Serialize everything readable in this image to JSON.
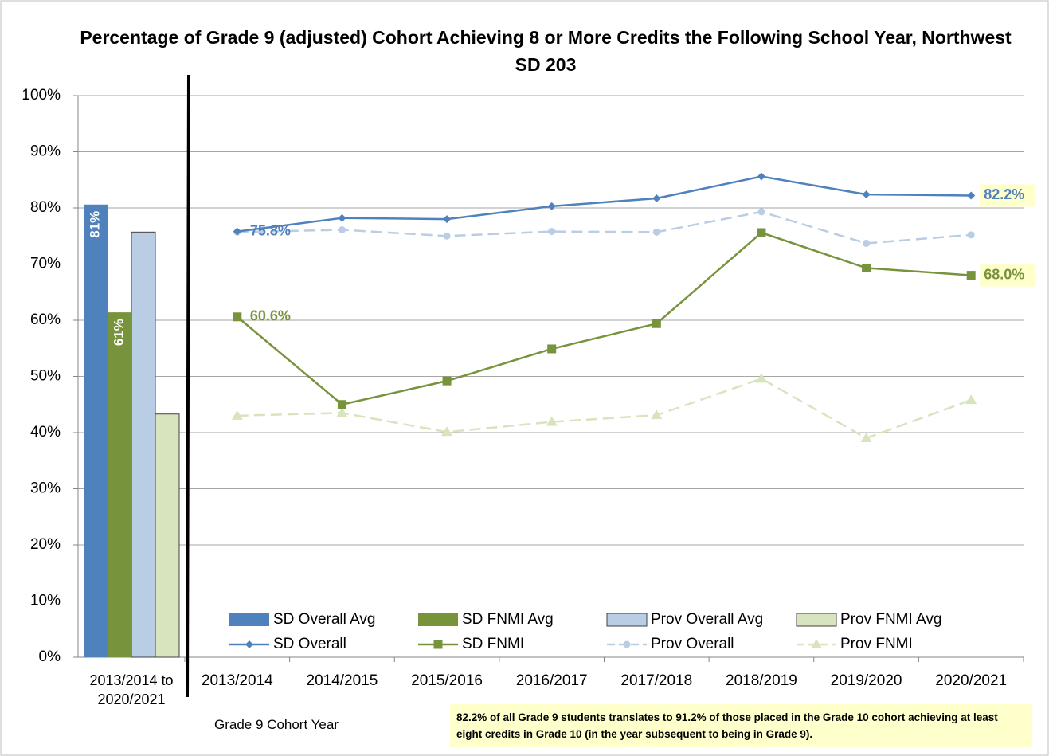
{
  "chart_data": [
    {
      "type": "bar",
      "title": "Percentage of Grade 9 (adjusted) Cohort Achieving 8 or More Credits the Following School Year, Northwest SD 203",
      "categories": [
        "2013/2014 to 2020/2021"
      ],
      "series": [
        {
          "name": "SD Overall Avg",
          "color": "#4f81bd",
          "values": [
            80.6
          ],
          "value_labels": [
            "81%"
          ]
        },
        {
          "name": "SD FNMI Avg",
          "color": "#77933c",
          "values": [
            61.4
          ],
          "value_labels": [
            "61%"
          ]
        },
        {
          "name": "Prov Overall Avg",
          "color": "#b9cde5",
          "values": [
            75.7
          ]
        },
        {
          "name": "Prov FNMI Avg",
          "color": "#d7e4bd",
          "values": [
            43.3
          ]
        }
      ],
      "ylim": [
        0,
        100
      ],
      "yticks": [
        {
          "value": 0,
          "label": "0%"
        },
        {
          "value": 10,
          "label": "10%"
        },
        {
          "value": 20,
          "label": "20%"
        },
        {
          "value": 30,
          "label": "30%"
        },
        {
          "value": 40,
          "label": "40%"
        },
        {
          "value": 50,
          "label": "50%"
        },
        {
          "value": 60,
          "label": "60%"
        },
        {
          "value": 70,
          "label": "70%"
        },
        {
          "value": 80,
          "label": "80%"
        },
        {
          "value": 90,
          "label": "90%"
        },
        {
          "value": 100,
          "label": "100%"
        }
      ],
      "grid": true
    },
    {
      "type": "line",
      "x_label": "Grade 9 Cohort Year",
      "annotation": "82.2% of all Grade 9 students translates to 91.2% of those placed in the Grade 10 cohort achieving at least eight credits in Grade 10 (in the year subsequent to being in Grade 9).",
      "categories": [
        "2013/2014",
        "2014/2015",
        "2015/2016",
        "2016/2017",
        "2017/2018",
        "2018/2019",
        "2019/2020",
        "2020/2021"
      ],
      "series": [
        {
          "name": "SD Overall",
          "color": "#4f81bd",
          "marker": "diamond",
          "dashed": false,
          "values": [
            75.8,
            78.2,
            78.0,
            80.3,
            81.7,
            85.6,
            82.4,
            82.2
          ],
          "value_labels": [
            "75.8%",
            null,
            null,
            null,
            null,
            null,
            null,
            "82.2%"
          ]
        },
        {
          "name": "SD FNMI",
          "color": "#77933c",
          "marker": "square",
          "dashed": false,
          "values": [
            60.6,
            45.0,
            49.2,
            54.9,
            59.4,
            75.6,
            69.3,
            68.0
          ],
          "value_labels": [
            "60.6%",
            null,
            null,
            null,
            null,
            null,
            null,
            "68.0%"
          ]
        },
        {
          "name": "Prov Overall",
          "color": "#b9cde5",
          "marker": "circle",
          "dashed": true,
          "values": [
            75.7,
            76.1,
            75.0,
            75.8,
            75.7,
            79.3,
            73.7,
            75.2
          ]
        },
        {
          "name": "Prov FNMI",
          "color": "#d7e4bd",
          "marker": "triangle",
          "dashed": true,
          "values": [
            43.0,
            43.5,
            40.1,
            41.9,
            43.1,
            49.6,
            39.0,
            45.8
          ]
        }
      ],
      "legend": "bottom"
    }
  ]
}
